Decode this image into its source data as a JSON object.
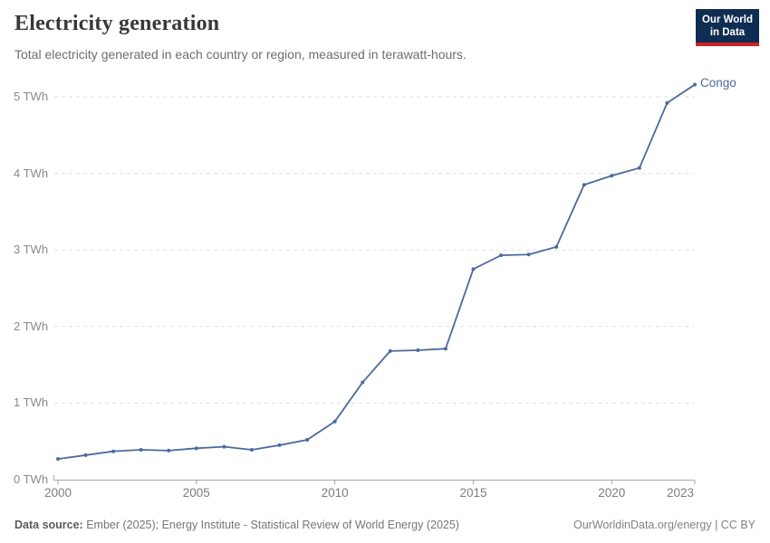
{
  "header": {
    "title": "Electricity generation",
    "subtitle": "Total electricity generated in each country or region, measured in terawatt-hours.",
    "logo": {
      "line1": "Our World",
      "line2": "in Data",
      "bg_color": "#0f2d52",
      "stripe_color": "#cb2529",
      "text_color": "#ffffff"
    }
  },
  "chart_data": {
    "type": "line",
    "title": "Electricity generation",
    "unit": "TWh",
    "grid": "horizontal dashed",
    "legend_position": "end-of-line label",
    "xlim": [
      2000,
      2023
    ],
    "ylim": [
      0,
      5.3
    ],
    "x": [
      2000,
      2001,
      2002,
      2003,
      2004,
      2005,
      2006,
      2007,
      2008,
      2009,
      2010,
      2011,
      2012,
      2013,
      2014,
      2015,
      2016,
      2017,
      2018,
      2019,
      2020,
      2021,
      2022,
      2023
    ],
    "series": [
      {
        "name": "Congo",
        "color": "#4c6a9c",
        "values": [
          0.27,
          0.32,
          0.37,
          0.39,
          0.38,
          0.41,
          0.43,
          0.39,
          0.45,
          0.52,
          0.76,
          1.27,
          1.68,
          1.69,
          1.71,
          2.75,
          2.93,
          2.94,
          3.04,
          3.85,
          3.97,
          4.07,
          4.92,
          5.16
        ]
      }
    ],
    "y_ticks": [
      {
        "value": 0,
        "label": "0 TWh"
      },
      {
        "value": 1,
        "label": "1 TWh"
      },
      {
        "value": 2,
        "label": "2 TWh"
      },
      {
        "value": 3,
        "label": "3 TWh"
      },
      {
        "value": 4,
        "label": "4 TWh"
      },
      {
        "value": 5,
        "label": "5 TWh"
      }
    ],
    "x_ticks": [
      {
        "value": 2000,
        "label": "2000"
      },
      {
        "value": 2005,
        "label": "2005"
      },
      {
        "value": 2010,
        "label": "2010"
      },
      {
        "value": 2015,
        "label": "2015"
      },
      {
        "value": 2020,
        "label": "2020"
      },
      {
        "value": 2023,
        "label": "2023"
      }
    ],
    "colors": {
      "gridline": "#e0e0e0",
      "axis": "#a8a8a8"
    }
  },
  "footer": {
    "source_label": "Data source:",
    "source_text": "Ember (2025); Energy Institute - Statistical Review of World Energy (2025)",
    "credit": "OurWorldinData.org/energy | CC BY"
  }
}
